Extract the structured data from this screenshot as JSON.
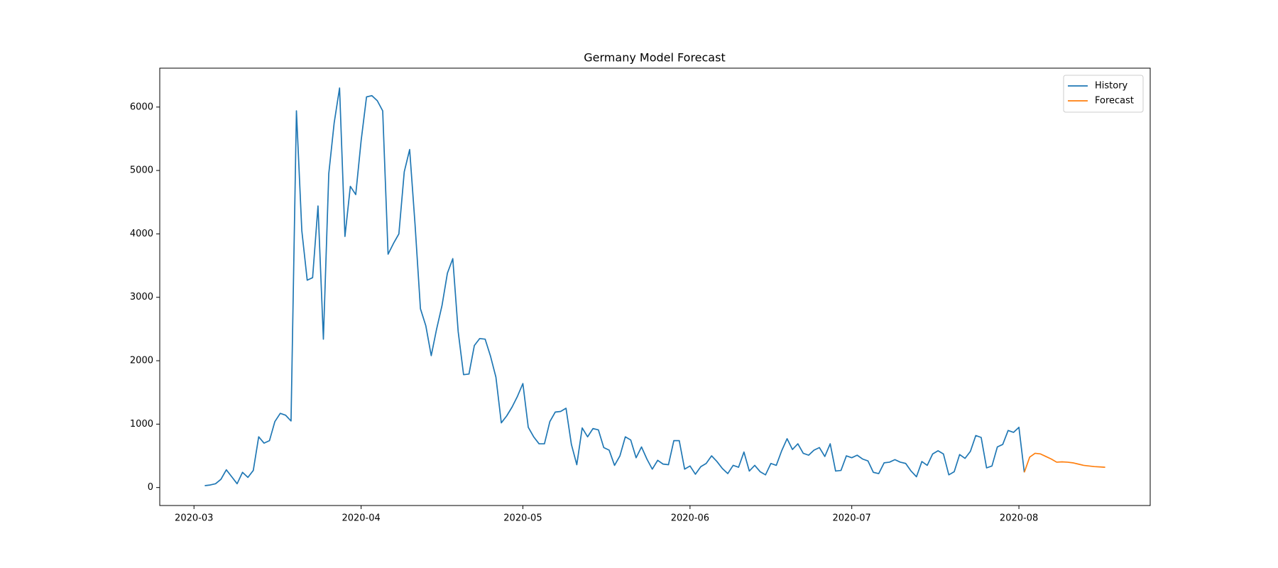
{
  "chart_data": {
    "type": "line",
    "title": "Germany Model Forecast",
    "series": [
      {
        "name": "History",
        "color": "#1f77b4",
        "x": [
          18324,
          18325,
          18326,
          18327,
          18328,
          18329,
          18330,
          18331,
          18332,
          18333,
          18334,
          18335,
          18336,
          18337,
          18338,
          18339,
          18340,
          18341,
          18342,
          18343,
          18344,
          18345,
          18346,
          18347,
          18348,
          18349,
          18350,
          18351,
          18352,
          18353,
          18354,
          18355,
          18356,
          18357,
          18358,
          18359,
          18360,
          18361,
          18362,
          18363,
          18364,
          18365,
          18366,
          18367,
          18368,
          18369,
          18370,
          18371,
          18372,
          18373,
          18374,
          18375,
          18376,
          18377,
          18378,
          18379,
          18380,
          18381,
          18382,
          18383,
          18384,
          18385,
          18386,
          18387,
          18388,
          18389,
          18390,
          18391,
          18392,
          18393,
          18394,
          18395,
          18396,
          18397,
          18398,
          18399,
          18400,
          18401,
          18402,
          18403,
          18404,
          18405,
          18406,
          18407,
          18408,
          18409,
          18410,
          18411,
          18412,
          18413,
          18414,
          18415,
          18416,
          18417,
          18418,
          18419,
          18420,
          18421,
          18422,
          18423,
          18424,
          18425,
          18426,
          18427,
          18428,
          18429,
          18430,
          18431,
          18432,
          18433,
          18434,
          18435,
          18436,
          18437,
          18438,
          18439,
          18440,
          18441,
          18442,
          18443,
          18444,
          18445,
          18446,
          18447,
          18448,
          18449,
          18450,
          18451,
          18452,
          18453,
          18454,
          18455,
          18456,
          18457,
          18458,
          18459,
          18460,
          18461,
          18462,
          18463,
          18464,
          18465,
          18466,
          18467,
          18468,
          18469,
          18470,
          18471,
          18472,
          18473,
          18474,
          18475,
          18476
        ],
        "values": [
          30,
          40,
          60,
          130,
          280,
          170,
          60,
          240,
          160,
          270,
          800,
          700,
          740,
          1040,
          1170,
          1140,
          1050,
          5940,
          4050,
          3270,
          3310,
          4440,
          2340,
          4950,
          5750,
          6300,
          3960,
          4750,
          4620,
          5470,
          6160,
          6180,
          6100,
          5940,
          3680,
          3850,
          4000,
          4980,
          5330,
          4150,
          2820,
          2550,
          2080,
          2500,
          2870,
          3380,
          3610,
          2460,
          1780,
          1790,
          2240,
          2350,
          2340,
          2070,
          1740,
          1020,
          1130,
          1270,
          1440,
          1640,
          950,
          800,
          690,
          690,
          1040,
          1190,
          1200,
          1250,
          680,
          360,
          940,
          800,
          930,
          910,
          630,
          590,
          350,
          500,
          800,
          750,
          470,
          640,
          450,
          290,
          430,
          370,
          360,
          740,
          740,
          290,
          340,
          210,
          330,
          380,
          500,
          410,
          300,
          220,
          350,
          320,
          560,
          260,
          350,
          250,
          200,
          380,
          350,
          580,
          770,
          600,
          690,
          540,
          510,
          590,
          630,
          490,
          690,
          260,
          270,
          500,
          470,
          510,
          450,
          420,
          240,
          220,
          390,
          400,
          440,
          400,
          380,
          260,
          170,
          410,
          350,
          530,
          580,
          530,
          200,
          250,
          520,
          460,
          570,
          820,
          790,
          310,
          340,
          640,
          680,
          900,
          870,
          950,
          240
        ]
      },
      {
        "name": "Forecast",
        "color": "#ff7f0e",
        "x": [
          18476,
          18477,
          18478,
          18479,
          18480,
          18481,
          18482,
          18483,
          18484,
          18485,
          18486,
          18487,
          18488,
          18489,
          18490,
          18491
        ],
        "values": [
          240,
          480,
          540,
          530,
          490,
          450,
          400,
          405,
          400,
          390,
          370,
          350,
          340,
          330,
          325,
          320
        ]
      }
    ],
    "xlim": [
      18315.65,
      18499.35
    ],
    "xticks": [
      {
        "value": 18322,
        "label": "2020-03"
      },
      {
        "value": 18353,
        "label": "2020-04"
      },
      {
        "value": 18383,
        "label": "2020-05"
      },
      {
        "value": 18414,
        "label": "2020-06"
      },
      {
        "value": 18444,
        "label": "2020-07"
      },
      {
        "value": 18475,
        "label": "2020-08"
      }
    ],
    "ylim": [
      -283.5,
      6613.5
    ],
    "yticks": [
      0,
      1000,
      2000,
      3000,
      4000,
      5000,
      6000
    ],
    "grid": false,
    "legend": "upper right"
  }
}
